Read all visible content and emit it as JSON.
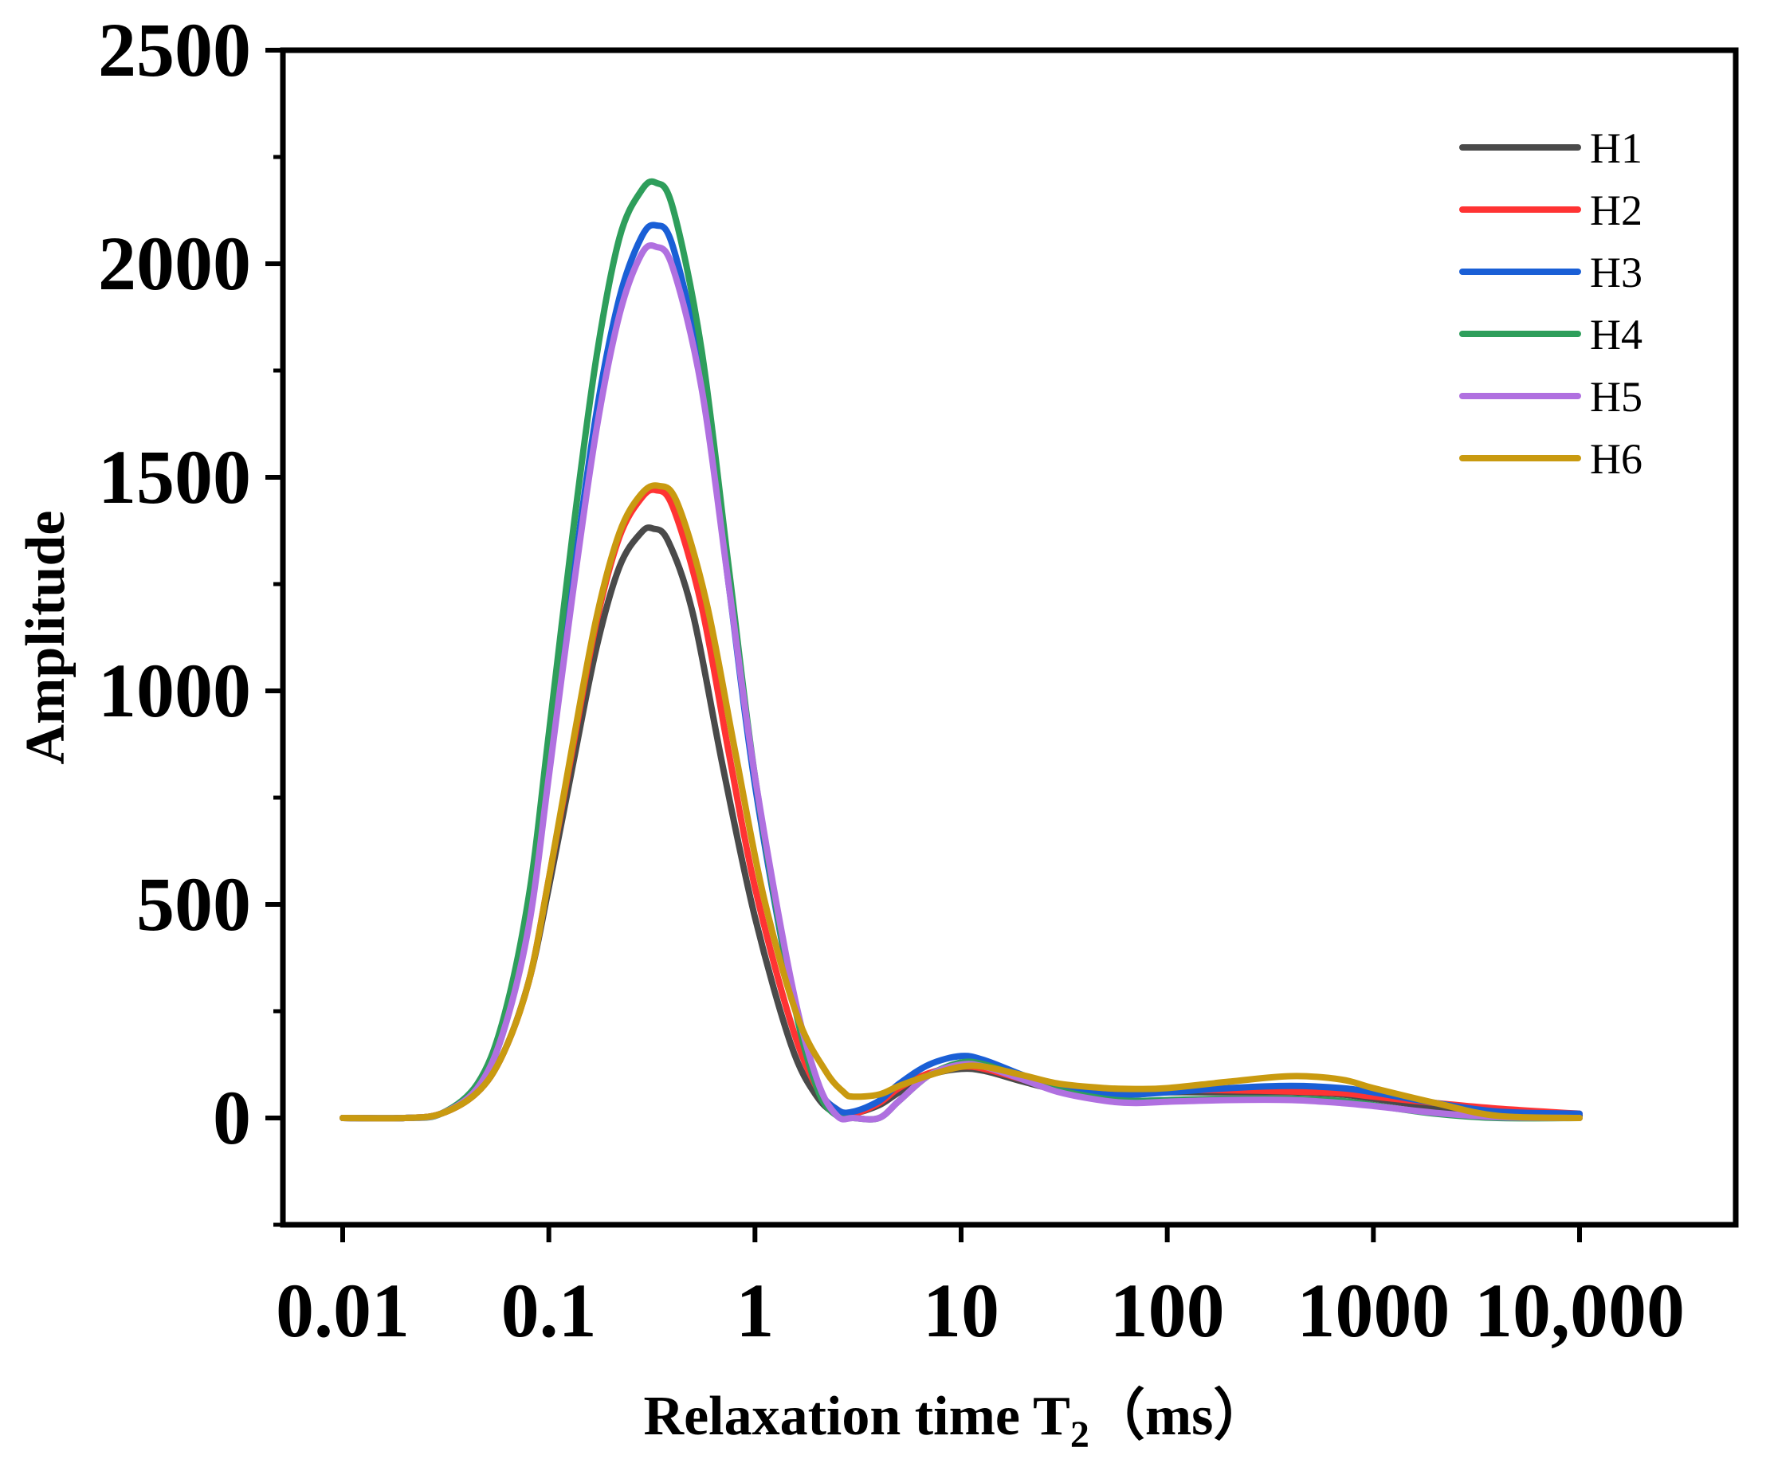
{
  "chart_data": {
    "type": "line",
    "title": "",
    "xlabel": "Relaxation time T",
    "xlabel_subscript": "2",
    "xlabel_unit": "（ms）",
    "ylabel": "Amplitude",
    "xscale": "log",
    "xlim": [
      0.005,
      50000
    ],
    "ylim": [
      -250,
      2500
    ],
    "xticks": [
      0.01,
      0.1,
      1,
      10,
      100,
      1000,
      10000
    ],
    "xtick_labels": [
      "0.01",
      "0.1",
      "1",
      "10",
      "100",
      "1000",
      "10,000"
    ],
    "yticks": [
      0,
      500,
      1000,
      1500,
      2000,
      2500
    ],
    "ytick_labels": [
      "0",
      "500",
      "1000",
      "1500",
      "2000",
      "2500"
    ],
    "legend_position": "top-right",
    "series": [
      {
        "name": "H1",
        "color": "#4a4a4a",
        "points": [
          [
            0.01,
            0
          ],
          [
            0.02,
            0
          ],
          [
            0.03,
            10
          ],
          [
            0.045,
            60
          ],
          [
            0.06,
            150
          ],
          [
            0.08,
            320
          ],
          [
            0.1,
            540
          ],
          [
            0.13,
            820
          ],
          [
            0.17,
            1100
          ],
          [
            0.22,
            1290
          ],
          [
            0.28,
            1370
          ],
          [
            0.32,
            1380
          ],
          [
            0.38,
            1350
          ],
          [
            0.5,
            1180
          ],
          [
            0.7,
            820
          ],
          [
            1,
            470
          ],
          [
            1.5,
            170
          ],
          [
            2,
            50
          ],
          [
            2.5,
            10
          ],
          [
            3,
            10
          ],
          [
            4,
            30
          ],
          [
            5,
            60
          ],
          [
            7,
            100
          ],
          [
            10,
            115
          ],
          [
            13,
            110
          ],
          [
            20,
            85
          ],
          [
            30,
            65
          ],
          [
            50,
            55
          ],
          [
            70,
            55
          ],
          [
            100,
            60
          ],
          [
            200,
            60
          ],
          [
            400,
            60
          ],
          [
            700,
            55
          ],
          [
            1000,
            45
          ],
          [
            2000,
            25
          ],
          [
            4000,
            10
          ],
          [
            10000,
            5
          ]
        ]
      },
      {
        "name": "H2",
        "color": "#ff3333",
        "points": [
          [
            0.01,
            0
          ],
          [
            0.02,
            0
          ],
          [
            0.03,
            10
          ],
          [
            0.045,
            60
          ],
          [
            0.06,
            150
          ],
          [
            0.08,
            320
          ],
          [
            0.1,
            560
          ],
          [
            0.13,
            860
          ],
          [
            0.17,
            1160
          ],
          [
            0.22,
            1360
          ],
          [
            0.28,
            1450
          ],
          [
            0.33,
            1470
          ],
          [
            0.4,
            1430
          ],
          [
            0.55,
            1200
          ],
          [
            0.75,
            850
          ],
          [
            1,
            540
          ],
          [
            1.5,
            220
          ],
          [
            2,
            70
          ],
          [
            2.5,
            20
          ],
          [
            3,
            10
          ],
          [
            4,
            35
          ],
          [
            5,
            70
          ],
          [
            7,
            105
          ],
          [
            10,
            120
          ],
          [
            13,
            115
          ],
          [
            20,
            90
          ],
          [
            30,
            70
          ],
          [
            50,
            60
          ],
          [
            70,
            60
          ],
          [
            100,
            65
          ],
          [
            200,
            65
          ],
          [
            400,
            62
          ],
          [
            700,
            58
          ],
          [
            1000,
            50
          ],
          [
            2000,
            35
          ],
          [
            4000,
            22
          ],
          [
            10000,
            10
          ]
        ]
      },
      {
        "name": "H3",
        "color": "#1a5fd6",
        "points": [
          [
            0.01,
            0
          ],
          [
            0.02,
            0
          ],
          [
            0.03,
            10
          ],
          [
            0.045,
            70
          ],
          [
            0.06,
            200
          ],
          [
            0.08,
            460
          ],
          [
            0.1,
            820
          ],
          [
            0.13,
            1250
          ],
          [
            0.17,
            1650
          ],
          [
            0.22,
            1920
          ],
          [
            0.28,
            2060
          ],
          [
            0.33,
            2090
          ],
          [
            0.4,
            2040
          ],
          [
            0.55,
            1740
          ],
          [
            0.75,
            1240
          ],
          [
            1,
            780
          ],
          [
            1.5,
            300
          ],
          [
            2,
            80
          ],
          [
            2.5,
            20
          ],
          [
            3,
            15
          ],
          [
            4,
            40
          ],
          [
            5,
            80
          ],
          [
            7,
            125
          ],
          [
            10,
            145
          ],
          [
            13,
            135
          ],
          [
            20,
            100
          ],
          [
            30,
            70
          ],
          [
            50,
            55
          ],
          [
            70,
            55
          ],
          [
            100,
            60
          ],
          [
            200,
            70
          ],
          [
            400,
            75
          ],
          [
            700,
            70
          ],
          [
            1000,
            60
          ],
          [
            2000,
            35
          ],
          [
            4000,
            15
          ],
          [
            10000,
            10
          ]
        ]
      },
      {
        "name": "H4",
        "color": "#2e9e5b",
        "points": [
          [
            0.01,
            0
          ],
          [
            0.02,
            0
          ],
          [
            0.03,
            10
          ],
          [
            0.045,
            80
          ],
          [
            0.06,
            230
          ],
          [
            0.08,
            520
          ],
          [
            0.1,
            900
          ],
          [
            0.13,
            1360
          ],
          [
            0.17,
            1780
          ],
          [
            0.22,
            2060
          ],
          [
            0.28,
            2170
          ],
          [
            0.33,
            2190
          ],
          [
            0.4,
            2130
          ],
          [
            0.55,
            1800
          ],
          [
            0.75,
            1280
          ],
          [
            1,
            800
          ],
          [
            1.5,
            300
          ],
          [
            2,
            70
          ],
          [
            2.5,
            5
          ],
          [
            3,
            0
          ],
          [
            4,
            0
          ],
          [
            5,
            40
          ],
          [
            7,
            100
          ],
          [
            10,
            130
          ],
          [
            13,
            125
          ],
          [
            20,
            95
          ],
          [
            30,
            65
          ],
          [
            50,
            45
          ],
          [
            70,
            40
          ],
          [
            100,
            42
          ],
          [
            200,
            45
          ],
          [
            400,
            45
          ],
          [
            700,
            40
          ],
          [
            1000,
            30
          ],
          [
            2000,
            10
          ],
          [
            4000,
            0
          ],
          [
            10000,
            0
          ]
        ]
      },
      {
        "name": "H5",
        "color": "#b070e0",
        "points": [
          [
            0.01,
            0
          ],
          [
            0.02,
            0
          ],
          [
            0.03,
            10
          ],
          [
            0.045,
            70
          ],
          [
            0.06,
            200
          ],
          [
            0.08,
            450
          ],
          [
            0.1,
            800
          ],
          [
            0.13,
            1220
          ],
          [
            0.17,
            1610
          ],
          [
            0.22,
            1880
          ],
          [
            0.28,
            2020
          ],
          [
            0.33,
            2040
          ],
          [
            0.4,
            1990
          ],
          [
            0.55,
            1710
          ],
          [
            0.75,
            1240
          ],
          [
            1,
            800
          ],
          [
            1.5,
            320
          ],
          [
            2,
            90
          ],
          [
            2.5,
            5
          ],
          [
            3,
            0
          ],
          [
            4,
            0
          ],
          [
            5,
            40
          ],
          [
            7,
            100
          ],
          [
            10,
            125
          ],
          [
            13,
            120
          ],
          [
            20,
            90
          ],
          [
            30,
            60
          ],
          [
            50,
            40
          ],
          [
            70,
            35
          ],
          [
            100,
            38
          ],
          [
            200,
            42
          ],
          [
            400,
            42
          ],
          [
            700,
            35
          ],
          [
            1000,
            28
          ],
          [
            2000,
            12
          ],
          [
            4000,
            2
          ],
          [
            10000,
            0
          ]
        ]
      },
      {
        "name": "H6",
        "color": "#c99a10",
        "points": [
          [
            0.01,
            0
          ],
          [
            0.02,
            0
          ],
          [
            0.03,
            10
          ],
          [
            0.045,
            60
          ],
          [
            0.06,
            150
          ],
          [
            0.08,
            320
          ],
          [
            0.1,
            560
          ],
          [
            0.13,
            870
          ],
          [
            0.17,
            1170
          ],
          [
            0.22,
            1370
          ],
          [
            0.28,
            1460
          ],
          [
            0.34,
            1480
          ],
          [
            0.42,
            1440
          ],
          [
            0.58,
            1210
          ],
          [
            0.8,
            860
          ],
          [
            1.1,
            520
          ],
          [
            1.6,
            240
          ],
          [
            2.2,
            110
          ],
          [
            2.7,
            60
          ],
          [
            3,
            50
          ],
          [
            4,
            55
          ],
          [
            5,
            75
          ],
          [
            7,
            100
          ],
          [
            10,
            120
          ],
          [
            13,
            120
          ],
          [
            20,
            100
          ],
          [
            30,
            80
          ],
          [
            50,
            70
          ],
          [
            70,
            68
          ],
          [
            100,
            70
          ],
          [
            200,
            85
          ],
          [
            400,
            98
          ],
          [
            700,
            90
          ],
          [
            1000,
            70
          ],
          [
            2000,
            35
          ],
          [
            4000,
            5
          ],
          [
            10000,
            0
          ]
        ]
      }
    ]
  }
}
